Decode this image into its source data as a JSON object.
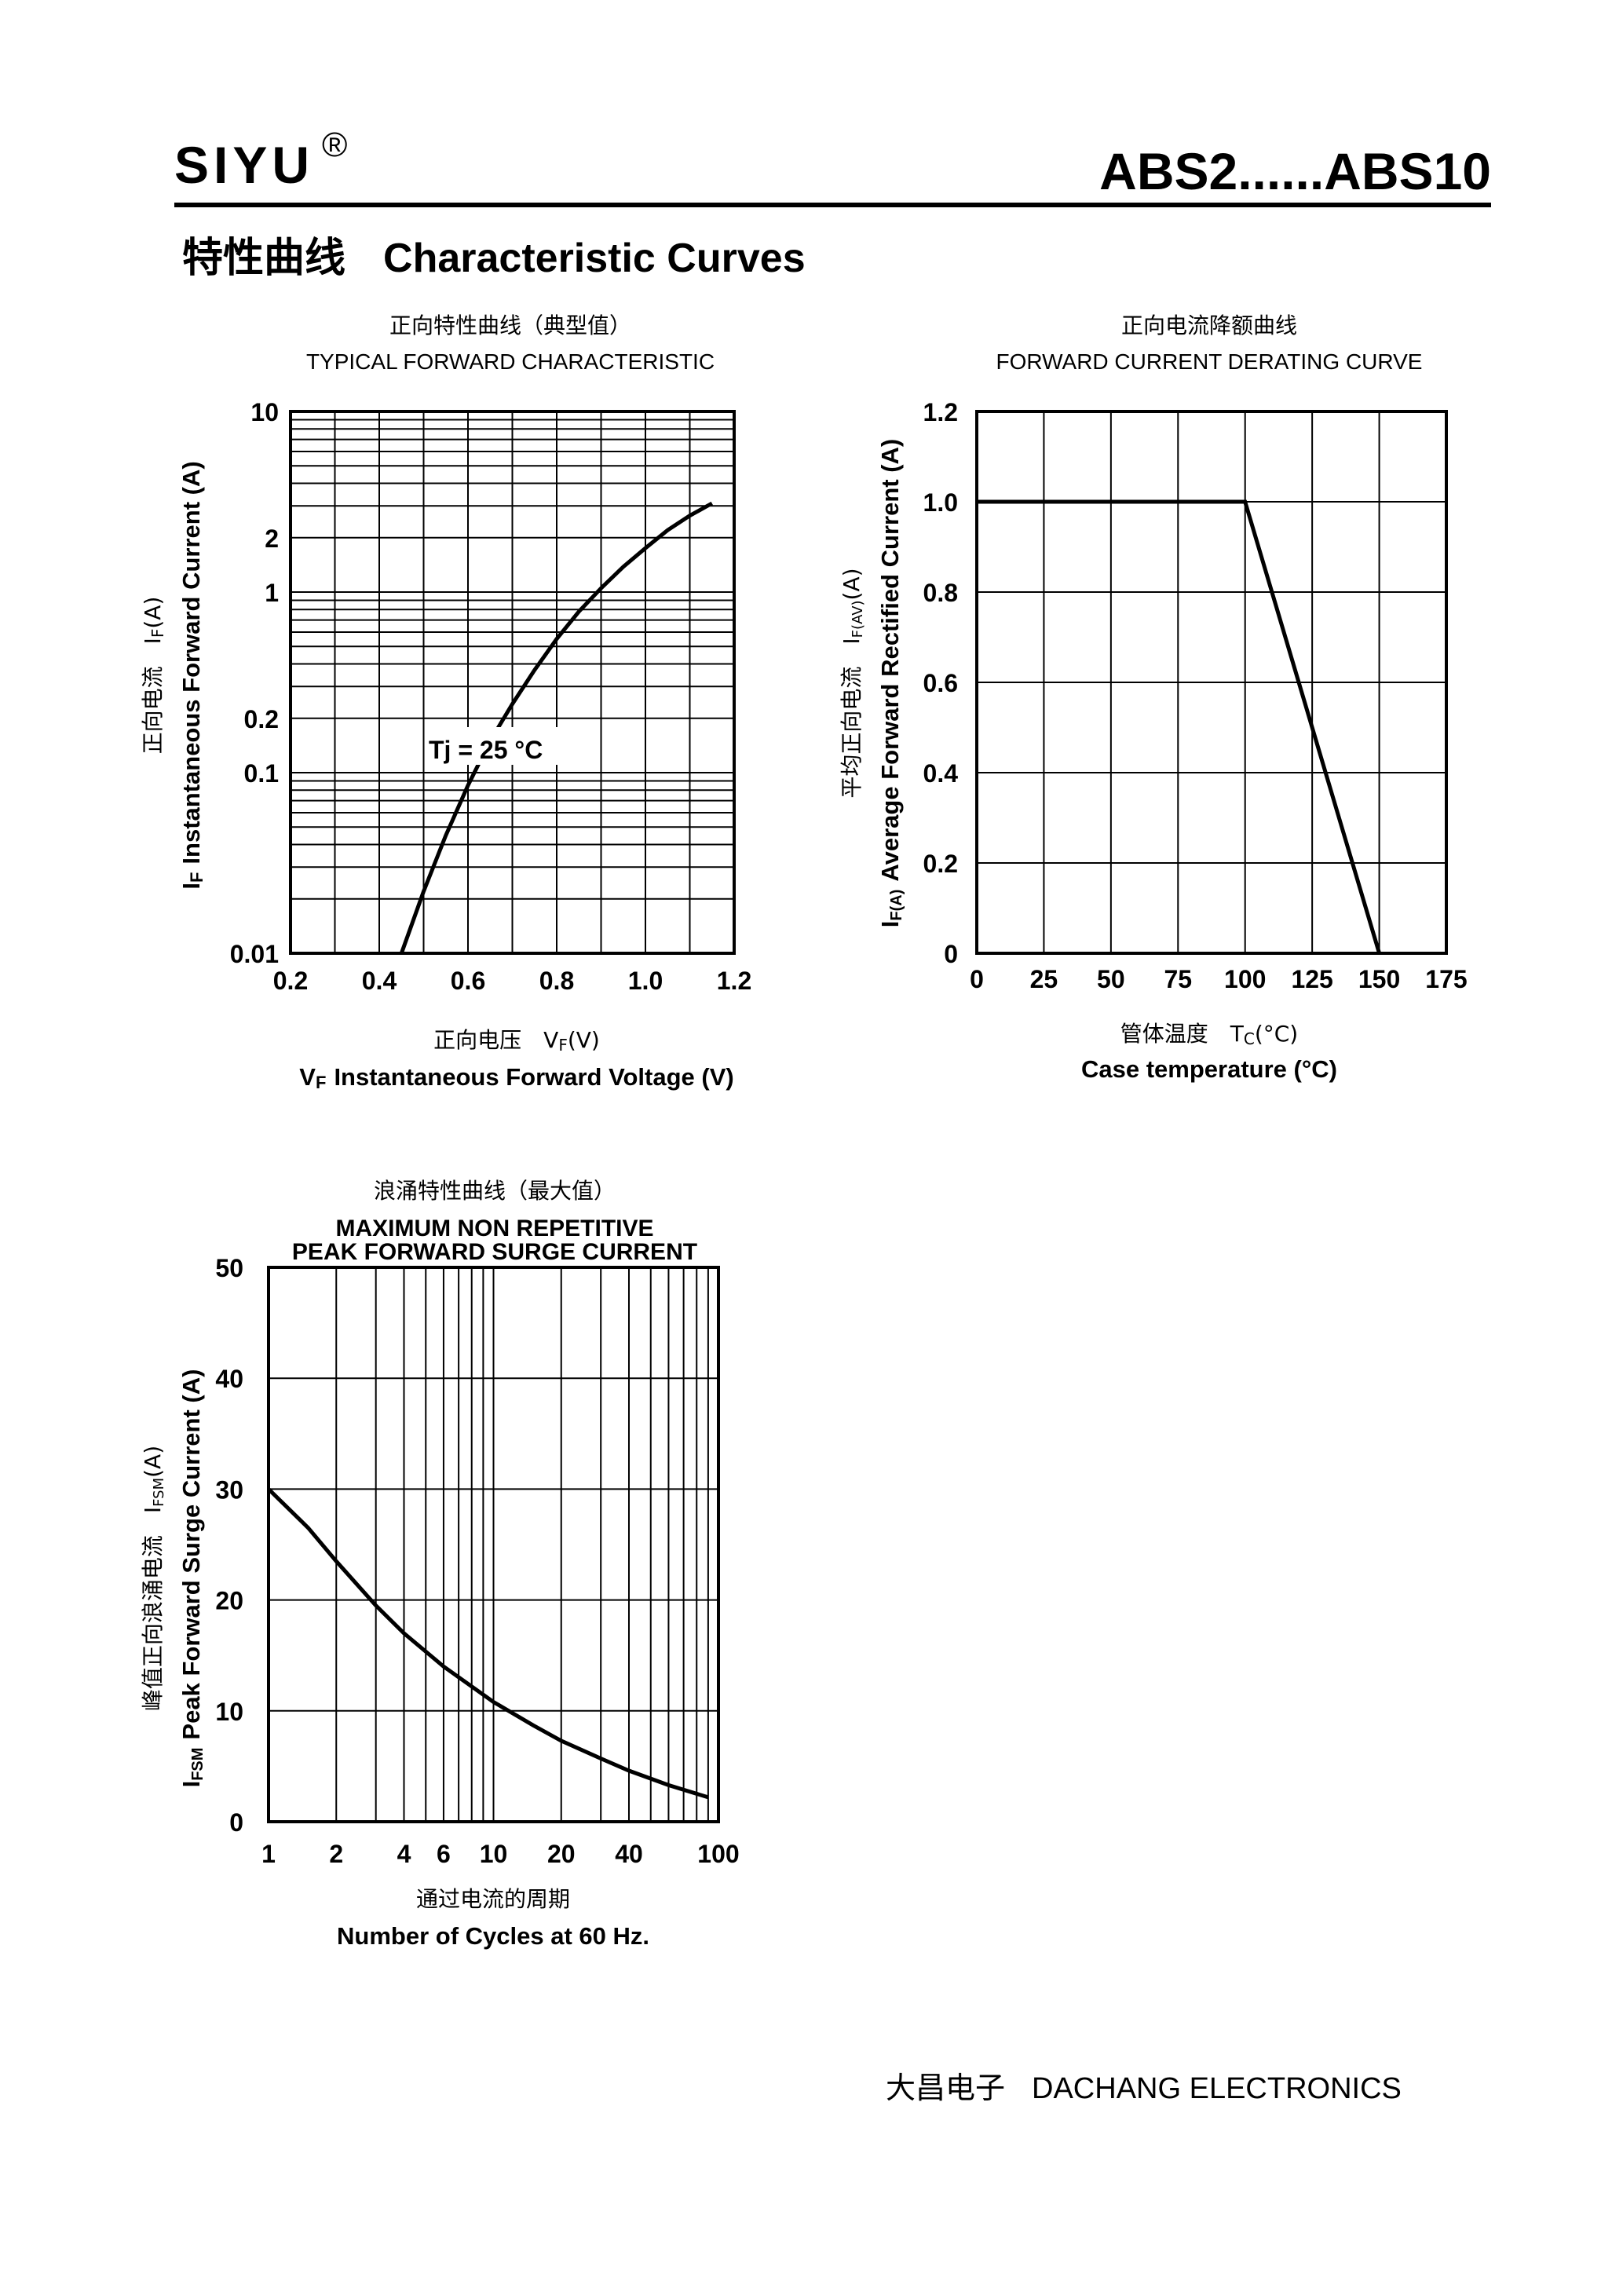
{
  "header": {
    "brand": "SIYU",
    "registered_mark": "®",
    "part_number": "ABS2......ABS10",
    "section_title_cn": "特性曲线",
    "section_title_en": "Characteristic Curves"
  },
  "footer": {
    "company_cn": "大昌电子",
    "company_en": "DACHANG ELECTRONICS"
  },
  "chart_data": [
    {
      "type": "line",
      "title_cn": "正向特性曲线（典型值）",
      "title": "TYPICAL FORWARD CHARACTERISTIC",
      "xlabel_cn": "正向电压　V",
      "xlabel_cn_sub": "F",
      "xlabel_cn_unit": "(V)",
      "xlabel": "Instantaneous Forward Voltage (V)",
      "xlabel_symbol": "V",
      "xlabel_symbol_sub": "F",
      "ylabel_cn": "正向电流　I",
      "ylabel_cn_sub": "F",
      "ylabel_cn_unit": "(A)",
      "ylabel": "Instantaneous Forward Current (A)",
      "ylabel_symbol": "I",
      "ylabel_symbol_sub": "F",
      "x_scale": "linear",
      "y_scale": "log",
      "xlim": [
        0.2,
        1.2
      ],
      "ylim": [
        0.01,
        10
      ],
      "x_ticks": [
        0.2,
        0.4,
        0.6,
        0.8,
        1.0,
        1.2
      ],
      "x_tick_labels": [
        "0.2",
        "0.4",
        "0.6",
        "0.8",
        "1.0",
        "1.2"
      ],
      "y_ticks": [
        0.01,
        0.1,
        0.2,
        1,
        2,
        10
      ],
      "y_tick_labels": [
        "0.01",
        "0.1",
        "0.2",
        "1",
        "2",
        "10"
      ],
      "grid": true,
      "annotation": "Tj = 25 °C",
      "series": [
        {
          "x": [
            0.45,
            0.5,
            0.55,
            0.6,
            0.65,
            0.7,
            0.75,
            0.8,
            0.85,
            0.9,
            0.95,
            1.0,
            1.05,
            1.1,
            1.15
          ],
          "y": [
            0.01,
            0.022,
            0.045,
            0.085,
            0.15,
            0.24,
            0.37,
            0.55,
            0.78,
            1.05,
            1.38,
            1.75,
            2.2,
            2.65,
            3.1
          ]
        }
      ]
    },
    {
      "type": "line",
      "title_cn": "正向电流降额曲线",
      "title": "FORWARD CURRENT DERATING CURVE",
      "xlabel_cn": "管体温度　T",
      "xlabel_cn_sub": "C",
      "xlabel_cn_unit": "(°C)",
      "xlabel": "Case temperature (°C)",
      "ylabel_cn": "平均正向电流　I",
      "ylabel_cn_sub": "F(AV)",
      "ylabel_cn_unit": "(A)",
      "ylabel": "Average Forward Rectified Current (A)",
      "ylabel_symbol": "I",
      "ylabel_symbol_sub": "F(A)",
      "x_scale": "linear",
      "y_scale": "linear",
      "xlim": [
        0,
        175
      ],
      "ylim": [
        0,
        1.2
      ],
      "x_ticks": [
        0,
        25,
        50,
        75,
        100,
        125,
        150,
        175
      ],
      "x_tick_labels": [
        "0",
        "25",
        "50",
        "75",
        "100",
        "125",
        "150",
        "175"
      ],
      "y_ticks": [
        0,
        0.2,
        0.4,
        0.6,
        0.8,
        1.0,
        1.2
      ],
      "y_tick_labels": [
        "0",
        "0.2",
        "0.4",
        "0.6",
        "0.8",
        "1.0",
        "1.2"
      ],
      "grid": true,
      "series": [
        {
          "x": [
            0,
            100,
            150
          ],
          "y": [
            1.0,
            1.0,
            0
          ]
        }
      ]
    },
    {
      "type": "line",
      "title_cn": "浪涌特性曲线（最大值）",
      "title_line1": "MAXIMUM NON REPETITIVE",
      "title_line2": "PEAK FORWARD SURGE CURRENT",
      "xlabel_cn": "通过电流的周期",
      "xlabel": "Number  of  Cycles at 60 Hz.",
      "ylabel_cn": "峰值正向浪涌电流　I",
      "ylabel_cn_sub": "FSM",
      "ylabel_cn_unit": "(A)",
      "ylabel": "Peak Forward Surge Current (A)",
      "ylabel_symbol": "I",
      "ylabel_symbol_sub": "FSM",
      "x_scale": "log",
      "y_scale": "linear",
      "xlim": [
        1,
        100
      ],
      "ylim": [
        0,
        50
      ],
      "x_ticks": [
        1,
        2,
        4,
        6,
        10,
        20,
        40,
        100
      ],
      "x_tick_labels": [
        "1",
        "2",
        "4",
        "6",
        "10",
        "20",
        "40",
        "100"
      ],
      "y_ticks": [
        0,
        10,
        20,
        30,
        40,
        50
      ],
      "y_tick_labels": [
        "0",
        "10",
        "20",
        "30",
        "40",
        "50"
      ],
      "grid": true,
      "series": [
        {
          "x": [
            1,
            1.5,
            2,
            3,
            4,
            6,
            10,
            15,
            20,
            30,
            40,
            60,
            90
          ],
          "y": [
            30,
            26.5,
            23.5,
            19.5,
            17,
            14,
            10.8,
            8.7,
            7.3,
            5.7,
            4.6,
            3.3,
            2.2
          ]
        }
      ]
    }
  ]
}
